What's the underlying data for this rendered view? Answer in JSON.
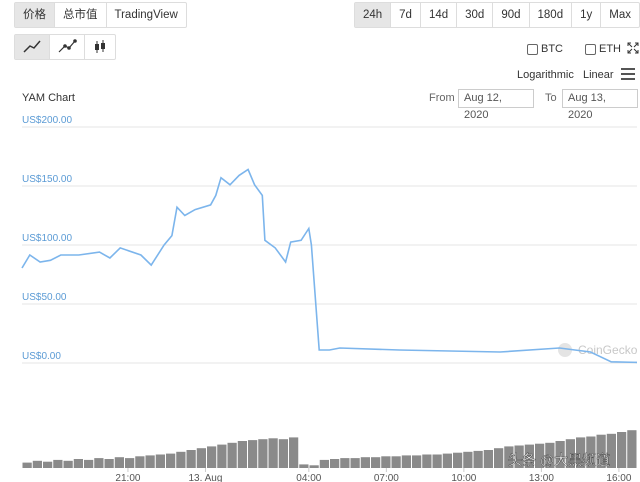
{
  "toolbar": {
    "tabs": [
      "价格",
      "总市值",
      "TradingView"
    ],
    "ranges": [
      "24h",
      "7d",
      "14d",
      "30d",
      "90d",
      "180d",
      "1y",
      "Max"
    ],
    "active_range_index": 0
  },
  "compare": [
    "BTC",
    "ETH"
  ],
  "scales": [
    "Logarithmic",
    "Linear"
  ],
  "chart_title": "YAM Chart",
  "from_label": "From",
  "from": "Aug 12, 2020",
  "to_label": "To",
  "to": "Aug 13, 2020",
  "watermarks": [
    "CoinGecko",
    "头条 @大黑频道"
  ],
  "chart_data": {
    "type": "line",
    "color": "#7cb5ec",
    "x": [
      16.9,
      17.2,
      17.6,
      18.0,
      18.4,
      19.1,
      19.9,
      20.3,
      20.7,
      21.5,
      21.9,
      22.4,
      22.7,
      22.9,
      23.2,
      23.6,
      24.2,
      24.4,
      24.6,
      24.95,
      25.3,
      25.65,
      25.9,
      26.2,
      26.3,
      26.7,
      27.1,
      27.3,
      27.7,
      28.0,
      28.1,
      28.4,
      28.8,
      29.2,
      31.5,
      35.4,
      37.7,
      38.9,
      39.7,
      40.7
    ],
    "values": [
      80.5,
      91.5,
      85.6,
      87,
      91.5,
      91.5,
      94,
      89,
      97.5,
      91.5,
      83,
      100,
      108,
      132,
      125,
      130,
      134,
      142,
      157,
      151,
      159,
      164,
      151,
      142,
      104,
      97.5,
      85.6,
      102.5,
      104,
      114,
      100,
      11,
      11,
      12.7,
      11,
      9.3,
      12.7,
      9.3,
      1,
      0.5
    ],
    "xlim": [
      16.9,
      40.7
    ],
    "ylim": [
      0,
      200
    ],
    "xticks": [
      {
        "value": 21,
        "label": "21:00"
      },
      {
        "value": 24,
        "label": "13. Aug"
      },
      {
        "value": 28,
        "label": "04:00"
      },
      {
        "value": 31,
        "label": "07:00"
      },
      {
        "value": 34,
        "label": "10:00"
      },
      {
        "value": 37,
        "label": "13:00"
      },
      {
        "value": 40,
        "label": "16:00"
      }
    ],
    "yticks": [
      {
        "value": 0,
        "label": "US$0.00"
      },
      {
        "value": 50,
        "label": "US$50.00"
      },
      {
        "value": 100,
        "label": "US$100.00"
      },
      {
        "value": 150,
        "label": "US$150.00"
      },
      {
        "value": 200,
        "label": "US$200.00"
      }
    ],
    "grid": true,
    "volume": {
      "color": "#8a8a8a",
      "ylim": [
        0,
        50
      ],
      "values": [
        6,
        8,
        7,
        9,
        8,
        10,
        9,
        11,
        10,
        12,
        11,
        13,
        14,
        15,
        16,
        18,
        20,
        22,
        24,
        26,
        28,
        30,
        31,
        32,
        33,
        32,
        34,
        4,
        3,
        9,
        10,
        11,
        11,
        12,
        12,
        13,
        13,
        14,
        14,
        15,
        15,
        16,
        17,
        18,
        19,
        20,
        22,
        24,
        25,
        26,
        27,
        28,
        30,
        32,
        34,
        35,
        37,
        38,
        40,
        42
      ]
    }
  }
}
